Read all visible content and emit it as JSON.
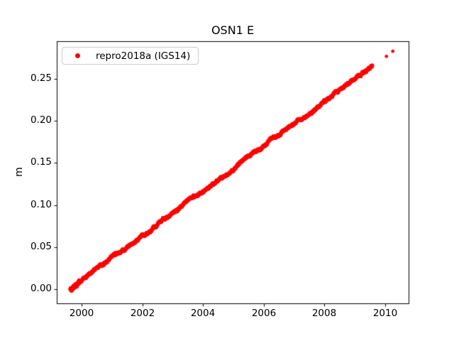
{
  "figure": {
    "background": "#ffffff",
    "axes_color": "#000000",
    "text_color": "#000000"
  },
  "chart_data": {
    "type": "scatter",
    "title": "OSN1 E",
    "xlabel": "",
    "ylabel": "m",
    "xlim": [
      1999.18,
      2010.77
    ],
    "ylim": [
      -0.017,
      0.295
    ],
    "xtick_labels": [
      "2000",
      "2002",
      "2004",
      "2006",
      "2008",
      "2010"
    ],
    "ytick_labels": [
      "0.00",
      "0.05",
      "0.10",
      "0.15",
      "0.20",
      "0.25"
    ],
    "grid": false,
    "legend": {
      "label": "repro2018a (IGS14)",
      "location": "upper left",
      "marker_color": "#ff0000",
      "border_color": "#cccccc"
    },
    "series": [
      {
        "name": "repro2018a (IGS14)",
        "color": "#ff0000",
        "marker": "dot",
        "marker_radius_px": 2.4,
        "trend": {
          "x_start": 1999.62,
          "y_start": 0.0005,
          "x_end": 2009.58,
          "y_end": 0.2655,
          "slope_m_per_yr": 0.0266
        },
        "sampling": {
          "points_per_year": 365,
          "noise_amplitude_m": 0.0012,
          "start_cluster_until": 1999.95,
          "start_cluster_noise_scale": 1.9
        },
        "outlier_points": [
          [
            2010.04,
            0.277
          ],
          [
            2010.25,
            0.283
          ]
        ]
      }
    ]
  }
}
